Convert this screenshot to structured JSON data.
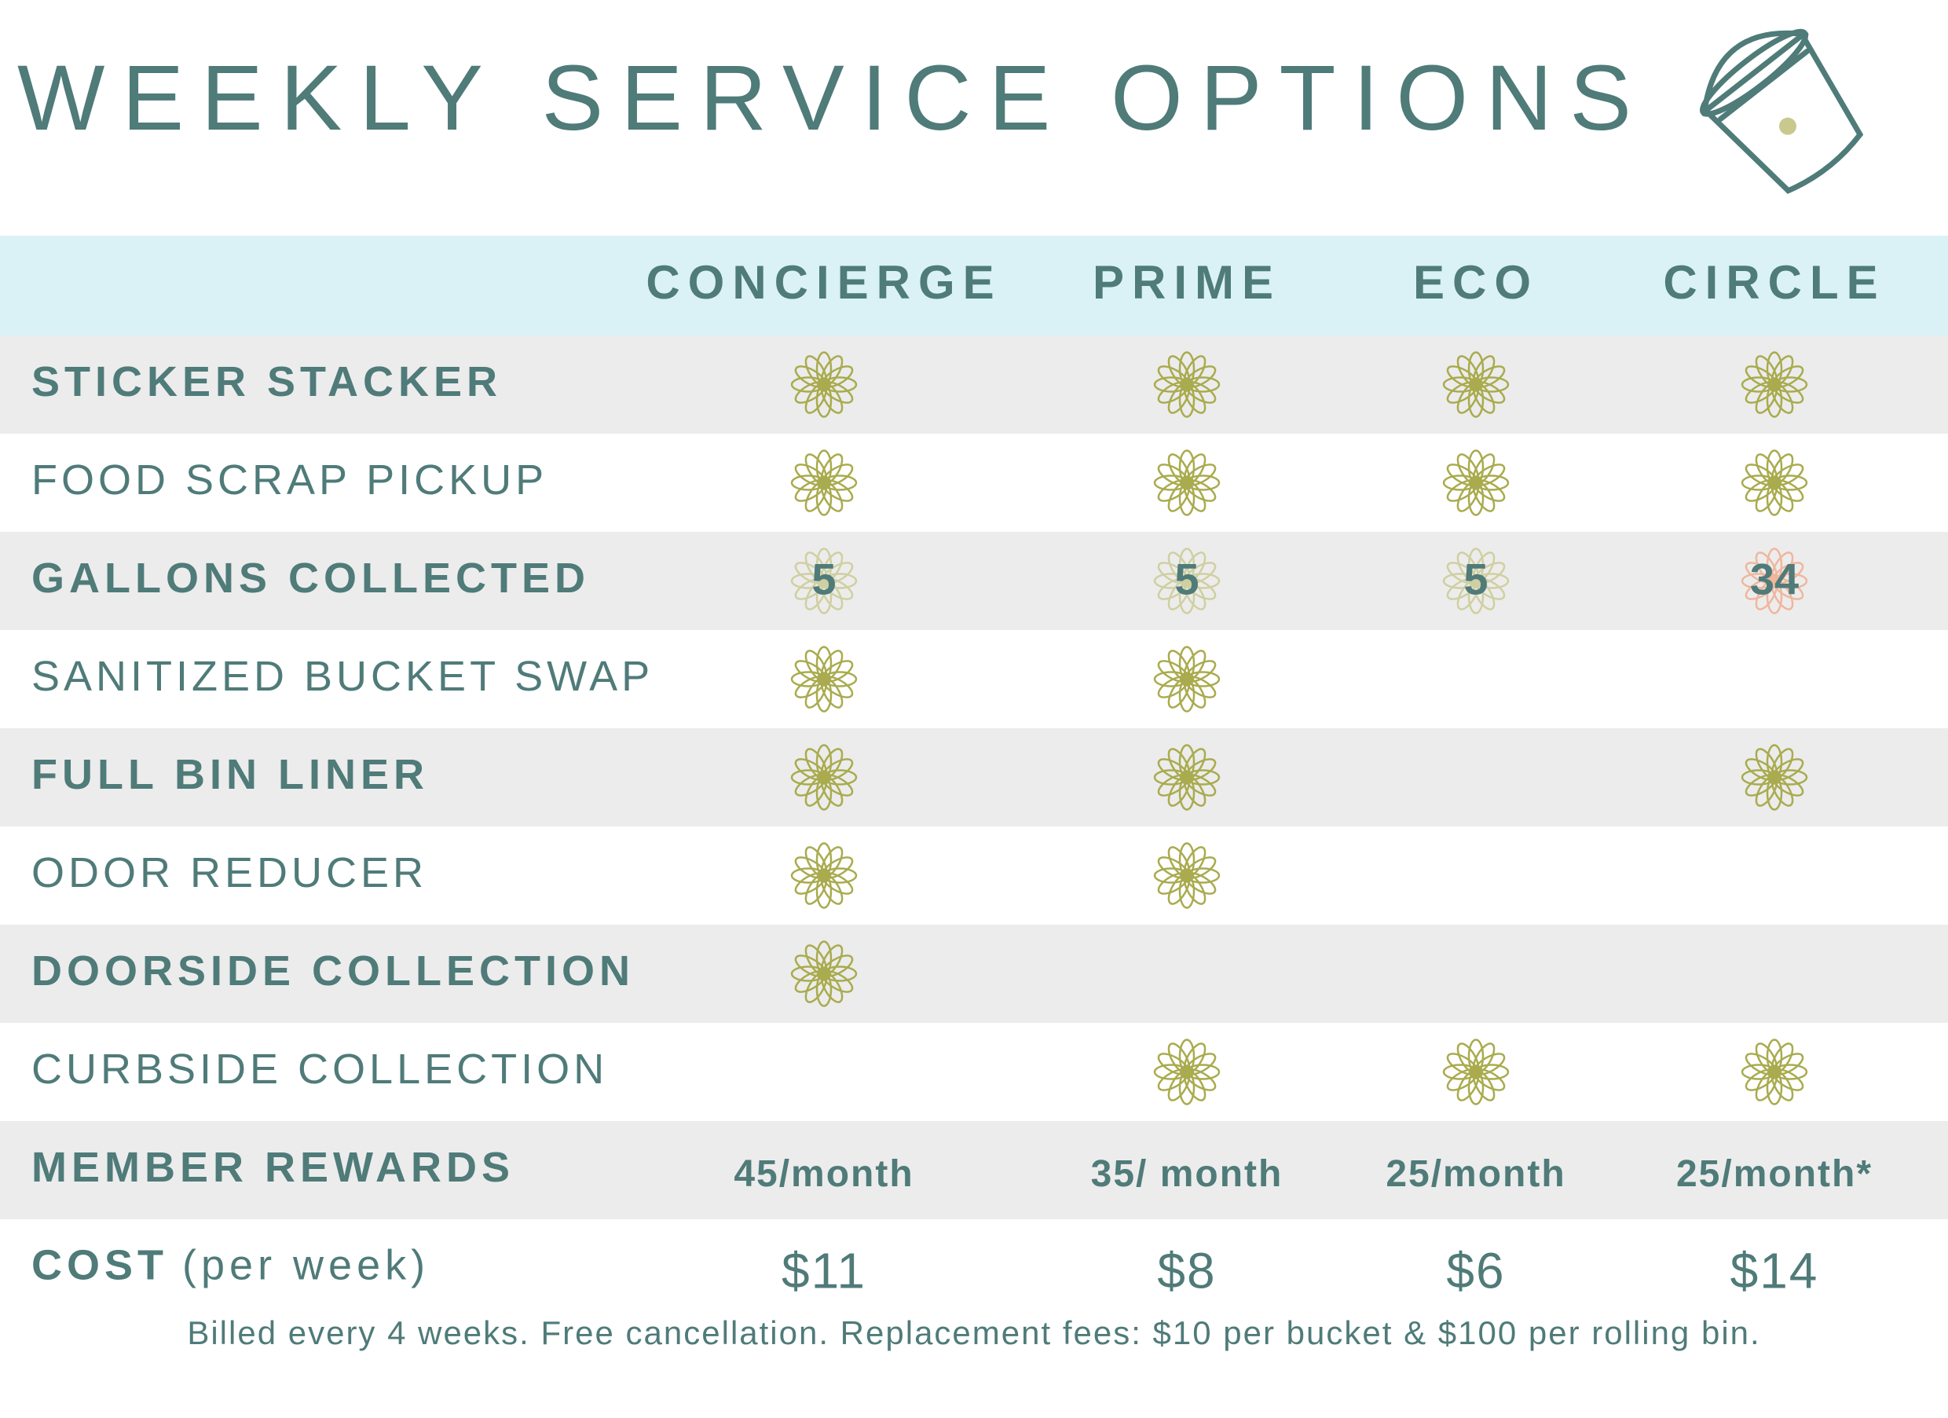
{
  "header": {
    "title": "WEEKLY SERVICE OPTIONS"
  },
  "table": {
    "columns": [
      "CONCIERGE",
      "PRIME",
      "ECO",
      "CIRCLE"
    ],
    "rows": [
      {
        "label": "STICKER STACKER",
        "bold": true,
        "cells": [
          true,
          true,
          true,
          true
        ]
      },
      {
        "label": "FOOD SCRAP PICKUP",
        "bold": false,
        "cells": [
          true,
          true,
          true,
          true
        ]
      },
      {
        "label": "GALLONS COLLECTED",
        "bold": true,
        "cells": [
          5,
          5,
          5,
          34
        ],
        "badge_colors": [
          "#c9c98f",
          "#c9c98f",
          "#c9c98f",
          "#f2a98a"
        ]
      },
      {
        "label": "SANITIZED BUCKET SWAP",
        "bold": false,
        "cells": [
          true,
          true,
          false,
          false
        ]
      },
      {
        "label": "FULL BIN LINER",
        "bold": true,
        "cells": [
          true,
          true,
          false,
          true
        ]
      },
      {
        "label": "ODOR REDUCER",
        "bold": false,
        "cells": [
          true,
          true,
          false,
          false
        ]
      },
      {
        "label": "DOORSIDE COLLECTION",
        "bold": true,
        "cells": [
          true,
          false,
          false,
          false
        ]
      },
      {
        "label": "CURBSIDE COLLECTION",
        "bold": false,
        "cells": [
          false,
          true,
          true,
          true
        ]
      },
      {
        "label": "MEMBER REWARDS",
        "bold": true,
        "cells": [
          "45/month",
          "35/ month",
          "25/month",
          "25/month*"
        ]
      },
      {
        "label": "COST",
        "label_note": "(per week)",
        "bold": true,
        "cells": [
          "$11",
          "$8",
          "$6",
          "$14"
        ]
      }
    ],
    "footnote": "Billed every 4 weeks. Free cancellation. Replacement fees: $10 per bucket & $100 per rolling bin."
  }
}
